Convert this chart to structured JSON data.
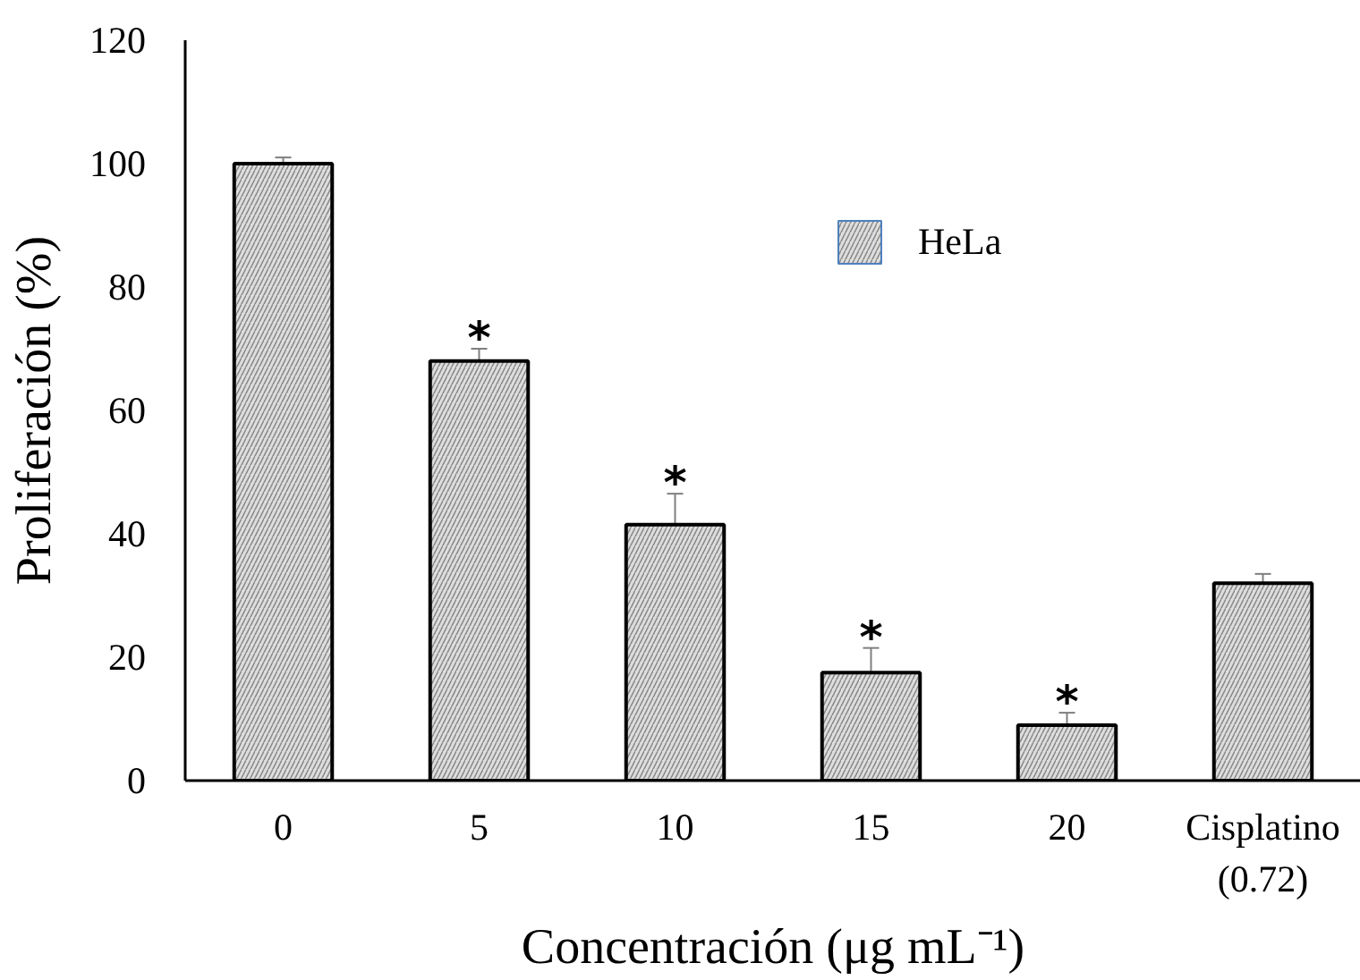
{
  "chart_data": {
    "type": "bar",
    "xlabel": "Concentración (μg mL⁻¹)",
    "ylabel": "Proliferación (%)",
    "categories": [
      "0",
      "5",
      "10",
      "15",
      "20",
      "Cisplatino (0.72)"
    ],
    "series": [
      {
        "name": "HeLa",
        "color": "#dedede",
        "values": [
          100,
          68,
          41.5,
          17.5,
          9,
          32
        ],
        "errors": [
          1,
          2,
          5,
          4,
          2,
          1.5
        ]
      }
    ],
    "ylim": [
      0,
      120
    ],
    "yticks": [
      0,
      20,
      40,
      60,
      80,
      100,
      120
    ],
    "legend": "top right",
    "annotations": [
      {
        "text": "*",
        "x": "5",
        "y": 68
      },
      {
        "text": "*",
        "x": "10",
        "y": 41.5
      },
      {
        "text": "*",
        "x": "15",
        "y": 17.5
      },
      {
        "text": "*",
        "x": "20",
        "y": 9
      }
    ]
  }
}
